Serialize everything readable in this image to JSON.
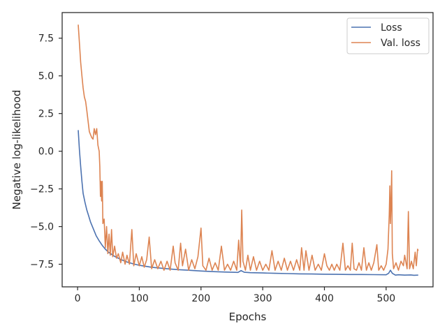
{
  "chart_data": {
    "type": "line",
    "xlabel": "Epochs",
    "ylabel": "Negative log-likelihood",
    "xlim": [
      -25,
      576
    ],
    "ylim": [
      -9.0,
      9.2
    ],
    "xticks": [
      0,
      100,
      200,
      300,
      400,
      500
    ],
    "yticks": [
      -7.5,
      -5.0,
      -2.5,
      0.0,
      2.5,
      5.0,
      7.5
    ],
    "xtick_labels": [
      "0",
      "100",
      "200",
      "300",
      "400",
      "500"
    ],
    "ytick_labels": [
      "−7.5",
      "−5.0",
      "−2.5",
      "0.0",
      "2.5",
      "5.0",
      "7.5"
    ],
    "grid": false,
    "legend_position": "top-right",
    "series": [
      {
        "name": "Loss",
        "color": "#4c72b0",
        "points": [
          [
            1,
            1.4
          ],
          [
            3,
            0.1
          ],
          [
            5,
            -1.0
          ],
          [
            7,
            -2.0
          ],
          [
            9,
            -2.8
          ],
          [
            12,
            -3.4
          ],
          [
            15,
            -3.9
          ],
          [
            18,
            -4.3
          ],
          [
            21,
            -4.7
          ],
          [
            25,
            -5.1
          ],
          [
            30,
            -5.6
          ],
          [
            35,
            -5.95
          ],
          [
            40,
            -6.25
          ],
          [
            45,
            -6.5
          ],
          [
            50,
            -6.7
          ],
          [
            60,
            -6.98
          ],
          [
            70,
            -7.18
          ],
          [
            80,
            -7.35
          ],
          [
            90,
            -7.47
          ],
          [
            100,
            -7.57
          ],
          [
            120,
            -7.7
          ],
          [
            140,
            -7.78
          ],
          [
            160,
            -7.85
          ],
          [
            180,
            -7.9
          ],
          [
            200,
            -7.95
          ],
          [
            220,
            -7.99
          ],
          [
            240,
            -8.02
          ],
          [
            260,
            -8.04
          ],
          [
            265,
            -7.92
          ],
          [
            270,
            -8.03
          ],
          [
            280,
            -8.06
          ],
          [
            300,
            -8.08
          ],
          [
            320,
            -8.1
          ],
          [
            340,
            -8.12
          ],
          [
            360,
            -8.14
          ],
          [
            380,
            -8.15
          ],
          [
            400,
            -8.16
          ],
          [
            420,
            -8.17
          ],
          [
            440,
            -8.18
          ],
          [
            460,
            -8.18
          ],
          [
            480,
            -8.19
          ],
          [
            500,
            -8.2
          ],
          [
            504,
            -8.1
          ],
          [
            507,
            -7.9
          ],
          [
            510,
            -8.1
          ],
          [
            515,
            -8.22
          ],
          [
            520,
            -8.2
          ],
          [
            530,
            -8.22
          ],
          [
            540,
            -8.21
          ],
          [
            545,
            -8.23
          ],
          [
            552,
            -8.22
          ]
        ]
      },
      {
        "name": "Val. loss",
        "color": "#dd8452",
        "points": [
          [
            1,
            8.4
          ],
          [
            3,
            7.2
          ],
          [
            5,
            5.9
          ],
          [
            7,
            5.0
          ],
          [
            9,
            4.2
          ],
          [
            11,
            3.6
          ],
          [
            13,
            3.3
          ],
          [
            15,
            2.7
          ],
          [
            17,
            2.0
          ],
          [
            19,
            1.3
          ],
          [
            21,
            1.1
          ],
          [
            23,
            0.9
          ],
          [
            25,
            0.8
          ],
          [
            27,
            1.5
          ],
          [
            29,
            1.1
          ],
          [
            31,
            1.5
          ],
          [
            33,
            0.4
          ],
          [
            35,
            0.0
          ],
          [
            36,
            -1.0
          ],
          [
            37,
            -3.0
          ],
          [
            38,
            -2.0
          ],
          [
            39,
            -3.3
          ],
          [
            40,
            -2.0
          ],
          [
            41,
            -4.8
          ],
          [
            43,
            -4.5
          ],
          [
            45,
            -6.4
          ],
          [
            47,
            -5.0
          ],
          [
            49,
            -6.8
          ],
          [
            51,
            -5.5
          ],
          [
            53,
            -6.9
          ],
          [
            55,
            -5.2
          ],
          [
            57,
            -7.0
          ],
          [
            60,
            -6.3
          ],
          [
            63,
            -7.1
          ],
          [
            66,
            -6.8
          ],
          [
            70,
            -7.4
          ],
          [
            73,
            -6.7
          ],
          [
            77,
            -7.5
          ],
          [
            80,
            -6.9
          ],
          [
            84,
            -7.5
          ],
          [
            88,
            -5.2
          ],
          [
            91,
            -7.6
          ],
          [
            95,
            -6.8
          ],
          [
            100,
            -7.6
          ],
          [
            104,
            -7.0
          ],
          [
            108,
            -7.7
          ],
          [
            112,
            -7.2
          ],
          [
            116,
            -5.7
          ],
          [
            120,
            -7.8
          ],
          [
            125,
            -7.2
          ],
          [
            130,
            -7.8
          ],
          [
            135,
            -7.3
          ],
          [
            140,
            -7.9
          ],
          [
            145,
            -7.3
          ],
          [
            150,
            -7.9
          ],
          [
            155,
            -6.3
          ],
          [
            158,
            -7.4
          ],
          [
            163,
            -7.9
          ],
          [
            167,
            -6.1
          ],
          [
            170,
            -7.6
          ],
          [
            175,
            -6.5
          ],
          [
            180,
            -7.9
          ],
          [
            185,
            -7.2
          ],
          [
            190,
            -7.8
          ],
          [
            195,
            -7.0
          ],
          [
            200,
            -5.1
          ],
          [
            203,
            -7.6
          ],
          [
            208,
            -7.9
          ],
          [
            213,
            -7.1
          ],
          [
            218,
            -7.9
          ],
          [
            223,
            -7.4
          ],
          [
            228,
            -7.9
          ],
          [
            233,
            -6.3
          ],
          [
            238,
            -7.9
          ],
          [
            243,
            -7.5
          ],
          [
            248,
            -7.9
          ],
          [
            253,
            -7.3
          ],
          [
            258,
            -7.9
          ],
          [
            261,
            -5.9
          ],
          [
            264,
            -7.7
          ],
          [
            266,
            -3.9
          ],
          [
            268,
            -7.3
          ],
          [
            272,
            -7.9
          ],
          [
            276,
            -6.9
          ],
          [
            280,
            -7.9
          ],
          [
            285,
            -7.0
          ],
          [
            290,
            -7.9
          ],
          [
            295,
            -7.3
          ],
          [
            300,
            -7.9
          ],
          [
            305,
            -7.5
          ],
          [
            310,
            -7.9
          ],
          [
            315,
            -6.6
          ],
          [
            320,
            -7.9
          ],
          [
            325,
            -7.3
          ],
          [
            330,
            -7.9
          ],
          [
            335,
            -7.1
          ],
          [
            340,
            -7.9
          ],
          [
            345,
            -7.3
          ],
          [
            350,
            -7.9
          ],
          [
            355,
            -7.2
          ],
          [
            360,
            -7.9
          ],
          [
            363,
            -6.4
          ],
          [
            367,
            -7.9
          ],
          [
            370,
            -6.6
          ],
          [
            375,
            -7.9
          ],
          [
            380,
            -6.9
          ],
          [
            385,
            -7.9
          ],
          [
            390,
            -7.5
          ],
          [
            395,
            -7.9
          ],
          [
            400,
            -6.8
          ],
          [
            404,
            -7.6
          ],
          [
            408,
            -7.9
          ],
          [
            412,
            -7.5
          ],
          [
            416,
            -7.9
          ],
          [
            420,
            -7.5
          ],
          [
            425,
            -7.9
          ],
          [
            430,
            -6.1
          ],
          [
            434,
            -7.9
          ],
          [
            438,
            -7.6
          ],
          [
            442,
            -7.9
          ],
          [
            445,
            -6.1
          ],
          [
            448,
            -7.8
          ],
          [
            452,
            -7.9
          ],
          [
            456,
            -7.4
          ],
          [
            460,
            -7.9
          ],
          [
            464,
            -6.4
          ],
          [
            468,
            -7.9
          ],
          [
            472,
            -7.4
          ],
          [
            476,
            -7.9
          ],
          [
            480,
            -7.4
          ],
          [
            485,
            -6.2
          ],
          [
            488,
            -7.9
          ],
          [
            492,
            -7.6
          ],
          [
            496,
            -7.9
          ],
          [
            500,
            -7.5
          ],
          [
            503,
            -6.5
          ],
          [
            505,
            -4.2
          ],
          [
            506,
            -2.3
          ],
          [
            507,
            -4.8
          ],
          [
            508,
            -3.5
          ],
          [
            509,
            -1.3
          ],
          [
            510,
            -6.8
          ],
          [
            512,
            -7.8
          ],
          [
            516,
            -7.4
          ],
          [
            520,
            -7.9
          ],
          [
            524,
            -7.3
          ],
          [
            528,
            -7.6
          ],
          [
            530,
            -6.9
          ],
          [
            534,
            -7.8
          ],
          [
            536,
            -4.0
          ],
          [
            538,
            -7.8
          ],
          [
            541,
            -7.3
          ],
          [
            544,
            -7.8
          ],
          [
            547,
            -6.7
          ],
          [
            549,
            -7.6
          ],
          [
            551,
            -6.5
          ],
          [
            552,
            -6.6
          ]
        ]
      }
    ]
  }
}
